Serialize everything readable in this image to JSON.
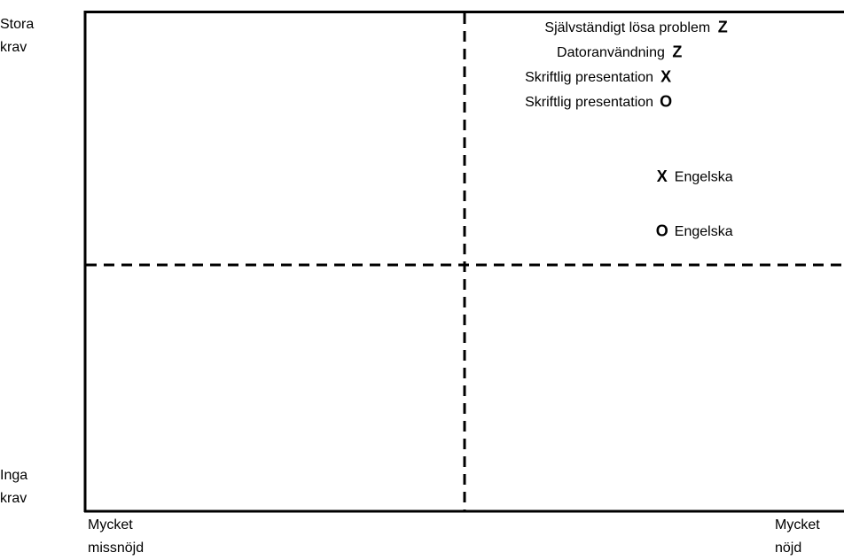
{
  "chart_data": {
    "type": "scatter",
    "y_axis": {
      "high_label": "Stora\nkrav",
      "low_label": "Inga\nkrav"
    },
    "x_axis": {
      "low_label": "Mycket\nmissnöjd",
      "high_label": "Mycket\nnöjd"
    },
    "xlim": [
      0,
      1
    ],
    "ylim": [
      0,
      1
    ],
    "dividers": {
      "x": 0.5,
      "y": 0.5,
      "style": "dashed"
    },
    "points": [
      {
        "label": "Självständigt lösa problem",
        "marker": "Z",
        "x": 0.84,
        "y": 0.97,
        "label_side": "left"
      },
      {
        "label": "Datoranvändning",
        "marker": "Z",
        "x": 0.78,
        "y": 0.92,
        "label_side": "left"
      },
      {
        "label": "Skriftlig presentation",
        "marker": "X",
        "x": 0.765,
        "y": 0.87,
        "label_side": "left"
      },
      {
        "label": "Skriftlig presentation",
        "marker": "O",
        "x": 0.765,
        "y": 0.82,
        "label_side": "left"
      },
      {
        "label": "Engelska",
        "marker": "X",
        "x": 0.76,
        "y": 0.67,
        "label_side": "right"
      },
      {
        "label": "Engelska",
        "marker": "O",
        "x": 0.76,
        "y": 0.56,
        "label_side": "right"
      }
    ]
  }
}
